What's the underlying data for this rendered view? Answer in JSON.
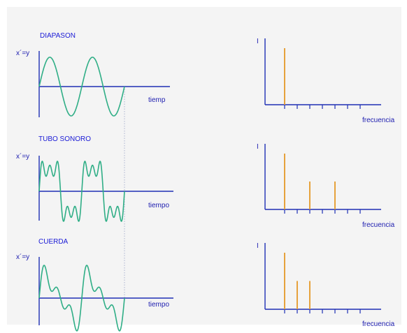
{
  "colors": {
    "background": "#f4f4f4",
    "axis": "#1e2fb4",
    "wave": "#2fae86",
    "spectrum_line": "#e6a23c",
    "label": "#1a1ad6",
    "guide": "#9aa6c8"
  },
  "panels": [
    {
      "title": "DIAPASON",
      "y_label": "x´=y",
      "x_label": "tiemp",
      "spectrum_y_label": "I",
      "spectrum_x_label": "frecuencia",
      "harmonic_amplitudes": [
        1
      ],
      "spectrum_peaks": [
        {
          "harmonic": 1,
          "intensity": 1.0
        }
      ]
    },
    {
      "title": "TUBO SONORO",
      "y_label": "x´=y",
      "x_label": "tiempo",
      "spectrum_y_label": "I",
      "spectrum_x_label": "frecuencia",
      "harmonic_amplitudes": [
        1,
        0,
        0.4,
        0,
        0.36
      ],
      "spectrum_peaks": [
        {
          "harmonic": 1,
          "intensity": 1.0
        },
        {
          "harmonic": 3,
          "intensity": 0.5
        },
        {
          "harmonic": 5,
          "intensity": 0.5
        }
      ]
    },
    {
      "title": "CUERDA",
      "y_label": "x´=y",
      "x_label": "tiempo",
      "spectrum_y_label": "I",
      "spectrum_x_label": "frecuencia",
      "harmonic_amplitudes": [
        1,
        0.55,
        0.5
      ],
      "spectrum_peaks": [
        {
          "harmonic": 1,
          "intensity": 1.0
        },
        {
          "harmonic": 2,
          "intensity": 0.5
        },
        {
          "harmonic": 3,
          "intensity": 0.5
        }
      ]
    }
  ]
}
